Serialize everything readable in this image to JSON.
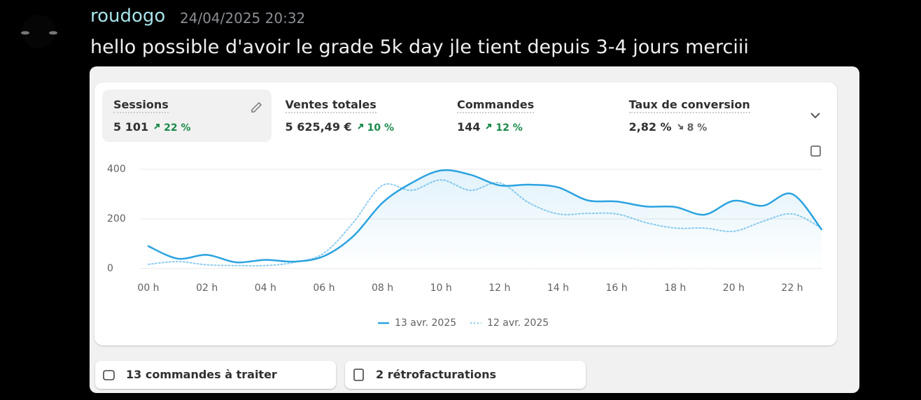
{
  "message": {
    "username": "roudogo",
    "timestamp": "24/04/2025 20:32",
    "text": "hello possible d'avoir le grade 5k day jle tient depuis 3-4 jours merciii"
  },
  "metrics": [
    {
      "label": "Sessions",
      "value": "5 101",
      "change": "22 %",
      "trend": "up"
    },
    {
      "label": "Ventes totales",
      "value": "5 625,49 €",
      "change": "10 %",
      "trend": "up"
    },
    {
      "label": "Commandes",
      "value": "144",
      "change": "12 %",
      "trend": "up"
    },
    {
      "label": "Taux de conversion",
      "value": "2,82 %",
      "change": "8 %",
      "trend": "down"
    }
  ],
  "buttons": [
    "13 commandes à traiter",
    "2 rétrofacturations"
  ],
  "chart_data": {
    "type": "line",
    "categories": [
      "00 h",
      null,
      "02 h",
      null,
      "04 h",
      null,
      "06 h",
      null,
      "08 h",
      null,
      "10 h",
      null,
      "12 h",
      null,
      "14 h",
      null,
      "16 h",
      null,
      "18 h",
      null,
      "20 h",
      null,
      "22 h",
      null
    ],
    "series": [
      {
        "name": "13 avr. 2025",
        "color": "#2ba3e0",
        "style": "solid",
        "values": [
          90,
          40,
          55,
          25,
          35,
          28,
          50,
          130,
          265,
          345,
          395,
          378,
          335,
          338,
          327,
          275,
          270,
          250,
          248,
          217,
          273,
          253,
          300,
          158
        ]
      },
      {
        "name": "12 avr. 2025",
        "color": "#8fcdef",
        "style": "dotted",
        "values": [
          17,
          28,
          15,
          12,
          12,
          25,
          62,
          185,
          335,
          315,
          357,
          315,
          345,
          265,
          220,
          222,
          220,
          185,
          163,
          163,
          150,
          190,
          220,
          163
        ]
      }
    ],
    "ylim": [
      0,
      400
    ],
    "yticks": [
      0,
      200,
      400
    ],
    "grid": true,
    "legend": "bottom"
  }
}
